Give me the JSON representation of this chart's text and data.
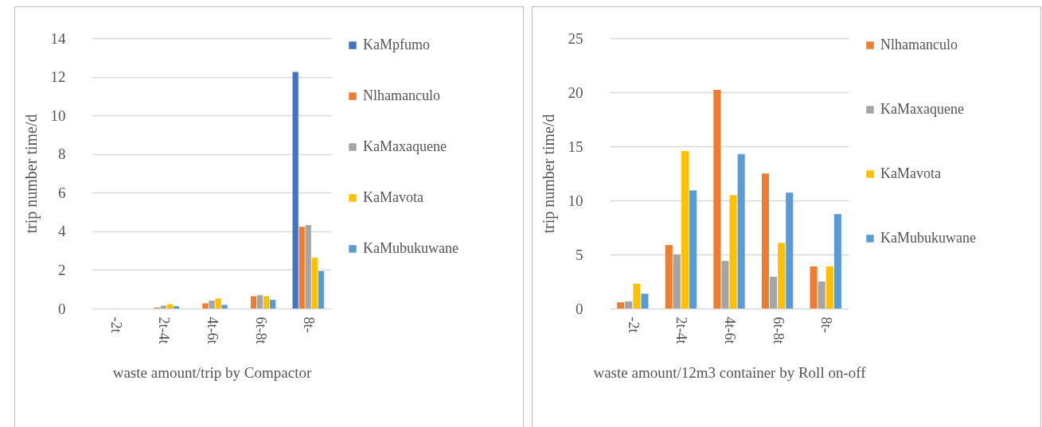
{
  "chart_data": [
    {
      "type": "bar",
      "xlabel": "waste amount/trip by Compactor",
      "ylabel": "trip number time/d",
      "categories": [
        "-2t",
        "2t-4t",
        "4t-6t",
        "6t-8t",
        "8t-"
      ],
      "ylim": [
        0,
        14
      ],
      "yticks": [
        0,
        2,
        4,
        6,
        8,
        10,
        12,
        14
      ],
      "grid": "y",
      "legend": "right",
      "series": [
        {
          "name": "KaMpfumo",
          "color": "#4472c4",
          "values": [
            0,
            0,
            0,
            0,
            12.25
          ]
        },
        {
          "name": "Nlhamanculo",
          "color": "#ed7d31",
          "values": [
            0,
            0.05,
            0.27,
            0.64,
            4.23
          ]
        },
        {
          "name": "KaMaxaquene",
          "color": "#a5a5a5",
          "values": [
            0,
            0.15,
            0.41,
            0.69,
            4.32
          ]
        },
        {
          "name": "KaMavota",
          "color": "#ffc000",
          "values": [
            0,
            0.22,
            0.52,
            0.64,
            2.63
          ]
        },
        {
          "name": "KaMubukuwane",
          "color": "#5b9bd5",
          "values": [
            0,
            0.12,
            0.19,
            0.45,
            1.94
          ]
        }
      ]
    },
    {
      "type": "bar",
      "xlabel": "waste amount/12m3 container by Roll on-off",
      "ylabel": "trip number time/d",
      "categories": [
        "-2t",
        "2t-4t",
        "4t-6t",
        "6t-8t",
        "8t-"
      ],
      "ylim": [
        0,
        25
      ],
      "yticks": [
        0,
        5,
        10,
        15,
        20,
        25
      ],
      "grid": "y",
      "legend": "right",
      "series": [
        {
          "name": "Nlhamanculo",
          "color": "#ed7d31",
          "values": [
            0.57,
            5.87,
            20.22,
            12.49,
            3.9
          ]
        },
        {
          "name": "KaMaxaquene",
          "color": "#a5a5a5",
          "values": [
            0.67,
            5.0,
            4.4,
            2.94,
            2.49
          ]
        },
        {
          "name": "KaMavota",
          "color": "#ffc000",
          "values": [
            2.3,
            14.55,
            10.47,
            6.07,
            3.9
          ]
        },
        {
          "name": "KaMubukuwane",
          "color": "#5b9bd5",
          "values": [
            1.37,
            10.92,
            14.28,
            10.72,
            8.73
          ]
        }
      ]
    }
  ]
}
